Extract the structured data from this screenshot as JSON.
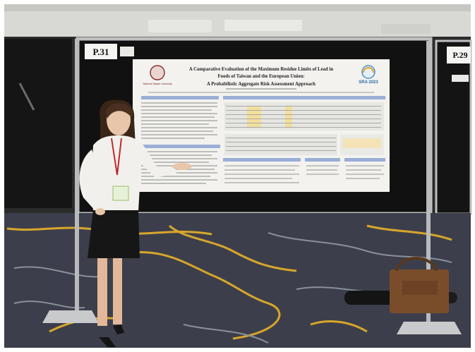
{
  "photo": {
    "board_labels": {
      "left": "P.31",
      "right": "P.29"
    },
    "poster": {
      "title_line1": "A Comparative Evaluation of the Maximum Residue Limits of Lead in",
      "title_line2": "Foods of Taiwan and the European Union:",
      "title_line3": "A Probabilistic Aggregate Risk Assessment Approach",
      "left_logo_text": "National Taiwan University",
      "right_logo_text": "SRA 2023"
    },
    "colors": {
      "ceiling": "#d9d9d6",
      "board": "#121212",
      "poster_bg": "#f3f2ef",
      "poster_section": "#9aaed6",
      "carpet_base": "#3c3f4b",
      "carpet_gold": "#d8a62a",
      "carpet_light": "#8b8f9c",
      "skirt": "#161616",
      "shirt": "#f2f0ec",
      "bag": "#7a4d2a"
    }
  }
}
